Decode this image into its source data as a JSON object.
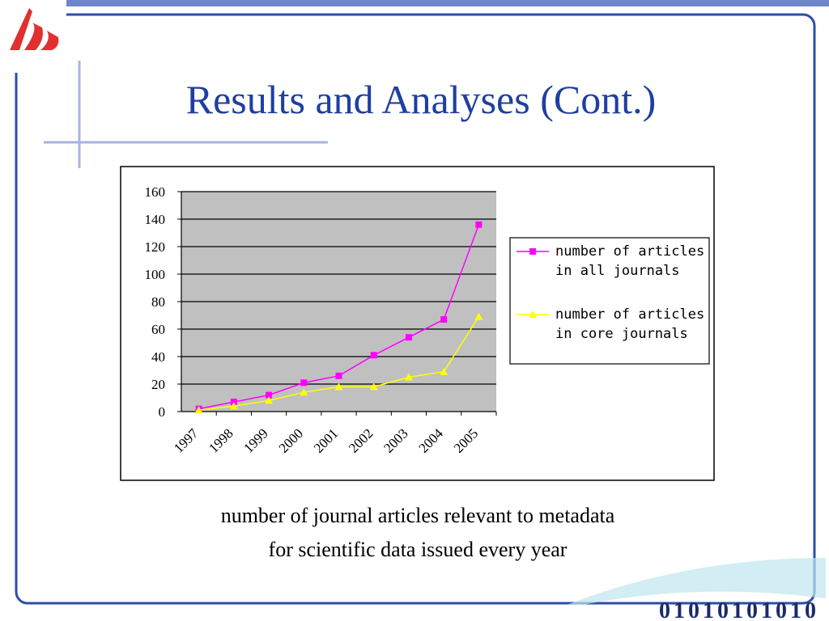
{
  "title": "Results and Analyses (Cont.)",
  "caption": [
    "number of journal articles relevant to metadata",
    "for scientific data issued every year"
  ],
  "footer": "01010101010",
  "chart_data": {
    "type": "line",
    "categories": [
      "1997",
      "1998",
      "1999",
      "2000",
      "2001",
      "2002",
      "2003",
      "2004",
      "2005"
    ],
    "series": [
      {
        "name": "number of articles in all journals",
        "color": "#ff00ff",
        "marker": "square",
        "values": [
          2,
          7,
          12,
          21,
          26,
          41,
          54,
          67,
          136
        ]
      },
      {
        "name": "number of articles in core journals",
        "color": "#ffff00",
        "marker": "triangle",
        "values": [
          1,
          4,
          8,
          14,
          18,
          18,
          25,
          29,
          69
        ]
      }
    ],
    "ylim": [
      0,
      160
    ],
    "yticks": [
      0,
      20,
      40,
      60,
      80,
      100,
      120,
      140,
      160
    ],
    "grid": true,
    "legend": "right"
  }
}
